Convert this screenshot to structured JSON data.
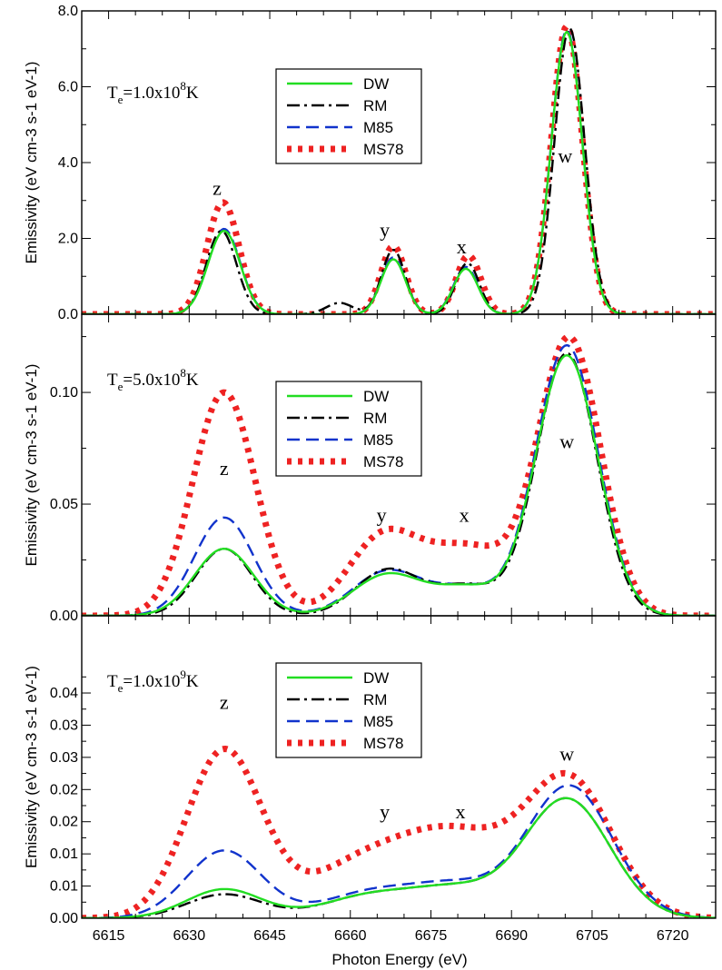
{
  "chart_data": {
    "type": "line",
    "xlabel": "Photon Energy (eV)",
    "xlim": [
      6610,
      6728
    ],
    "xticks": [
      "6615",
      "6630",
      "6645",
      "6660",
      "6675",
      "6690",
      "6705",
      "6720"
    ],
    "legend_entries": [
      "DW",
      "RM",
      "M85",
      "MS78"
    ],
    "series_colors": {
      "DW": "#22dd22",
      "RM": "#000000",
      "M85": "#1133cc",
      "MS78": "#ee2222"
    },
    "panels": [
      {
        "temperature": {
          "base": "T",
          "sub": "e",
          "main": "=1.0x10",
          "exp": "8",
          "unit": "K"
        },
        "ylabel": "Emissivity (eV cm-3 s-1 eV-1)",
        "ylim": [
          0,
          8
        ],
        "yticks": [
          "0.0",
          "2.0",
          "4.0",
          "6.0",
          "8.0"
        ],
        "peak_labels": [
          {
            "text": "z",
            "x": 6635.2,
            "y": 3.15
          },
          {
            "text": "y",
            "x": 6666.4,
            "y": 2.05
          },
          {
            "text": "x",
            "x": 6680.7,
            "y": 1.6
          },
          {
            "text": "w",
            "x": 6700.0,
            "y": 4.0
          }
        ],
        "series": [
          {
            "name": "DW",
            "peaks": [
              [
                6636.5,
                2.2,
                3.0
              ],
              [
                6668.0,
                1.45,
                2.3
              ],
              [
                6681.5,
                1.2,
                2.3
              ],
              [
                6700.3,
                7.45,
                2.9
              ]
            ]
          },
          {
            "name": "RM",
            "peaks": [
              [
                6636.0,
                2.2,
                2.8
              ],
              [
                6658.0,
                0.3,
                2.5
              ],
              [
                6668.0,
                1.7,
                2.2
              ],
              [
                6681.8,
                1.35,
                2.2
              ],
              [
                6700.8,
                7.55,
                2.8
              ]
            ]
          },
          {
            "name": "M85",
            "peaks": [
              [
                6636.5,
                2.25,
                3.0
              ],
              [
                6668.0,
                1.5,
                2.3
              ],
              [
                6681.5,
                1.25,
                2.3
              ],
              [
                6700.3,
                7.5,
                2.9
              ]
            ]
          },
          {
            "name": "MS78",
            "peaks": [
              [
                6636.3,
                2.95,
                3.0
              ],
              [
                6668.0,
                1.8,
                2.3
              ],
              [
                6682.0,
                1.55,
                2.3
              ],
              [
                6700.3,
                7.6,
                2.9
              ]
            ]
          }
        ]
      },
      {
        "temperature": {
          "base": "T",
          "sub": "e",
          "main": "=5.0x10",
          "exp": "8",
          "unit": "K"
        },
        "ylabel": "Emissivity (eV cm-3 s-1 eV-1)",
        "ylim": [
          0,
          0.135
        ],
        "yticks": [
          "0.00",
          "0.05",
          "0.10"
        ],
        "peak_labels": [
          {
            "text": "z",
            "x": 6636.5,
            "y": 0.063
          },
          {
            "text": "y",
            "x": 6665.8,
            "y": 0.042
          },
          {
            "text": "x",
            "x": 6681.2,
            "y": 0.042
          },
          {
            "text": "w",
            "x": 6700.3,
            "y": 0.075
          }
        ],
        "series": [
          {
            "name": "DW",
            "peaks": [
              [
                6636.5,
                0.03,
                5.5
              ],
              [
                6667.0,
                0.0185,
                6.5
              ],
              [
                6682.0,
                0.012,
                6.0
              ],
              [
                6700.3,
                0.1165,
                5.8
              ]
            ]
          },
          {
            "name": "RM",
            "peaks": [
              [
                6636.5,
                0.03,
                5.2
              ],
              [
                6667.0,
                0.0205,
                6.0
              ],
              [
                6682.0,
                0.013,
                6.0
              ],
              [
                6700.3,
                0.1175,
                5.6
              ]
            ]
          },
          {
            "name": "M85",
            "peaks": [
              [
                6636.5,
                0.044,
                5.5
              ],
              [
                6667.0,
                0.02,
                6.5
              ],
              [
                6682.0,
                0.012,
                6.0
              ],
              [
                6700.3,
                0.121,
                5.8
              ]
            ]
          },
          {
            "name": "MS78",
            "peaks": [
              [
                6636.5,
                0.1,
                5.8
              ],
              [
                6666.0,
                0.034,
                6.5
              ],
              [
                6682.0,
                0.03,
                8.0
              ],
              [
                6700.8,
                0.123,
                5.8
              ]
            ]
          }
        ]
      },
      {
        "temperature": {
          "base": "T",
          "sub": "e",
          "main": "=1.0x10",
          "exp": "9",
          "unit": "K"
        },
        "ylabel": "Emissivity (eV cm-3 s-1 eV-1)",
        "ylim": [
          0,
          0.047
        ],
        "yticks": [
          "0.00",
          "0.01",
          "0.01",
          "0.02",
          "0.02",
          "0.03",
          "0.03",
          "0.04"
        ],
        "peak_labels": [
          {
            "text": "z",
            "x": 6636.5,
            "y": 0.0325
          },
          {
            "text": "y",
            "x": 6666.4,
            "y": 0.0155
          },
          {
            "text": "x",
            "x": 6680.5,
            "y": 0.0155
          },
          {
            "text": "w",
            "x": 6700.3,
            "y": 0.0245
          }
        ],
        "series": [
          {
            "name": "DW",
            "peaks": [
              [
                6636.5,
                0.0045,
                7.0
              ],
              [
                6664.0,
                0.0035,
                9.0
              ],
              [
                6680.0,
                0.004,
                8.0
              ],
              [
                6700.3,
                0.0185,
                8.0
              ]
            ]
          },
          {
            "name": "RM",
            "peaks": [
              [
                6636.5,
                0.0037,
                7.0
              ],
              [
                6664.0,
                0.0035,
                9.0
              ],
              [
                6680.0,
                0.004,
                8.0
              ],
              [
                6700.3,
                0.0185,
                8.0
              ]
            ]
          },
          {
            "name": "M85",
            "peaks": [
              [
                6636.5,
                0.0105,
                7.0
              ],
              [
                6664.0,
                0.004,
                9.0
              ],
              [
                6680.0,
                0.0045,
                8.0
              ],
              [
                6700.8,
                0.0205,
                8.0
              ]
            ]
          },
          {
            "name": "MS78",
            "peaks": [
              [
                6636.5,
                0.026,
                7.0
              ],
              [
                6662.0,
                0.008,
                10.0
              ],
              [
                6680.0,
                0.012,
                10.0
              ],
              [
                6700.8,
                0.021,
                8.0
              ]
            ]
          }
        ]
      }
    ]
  }
}
